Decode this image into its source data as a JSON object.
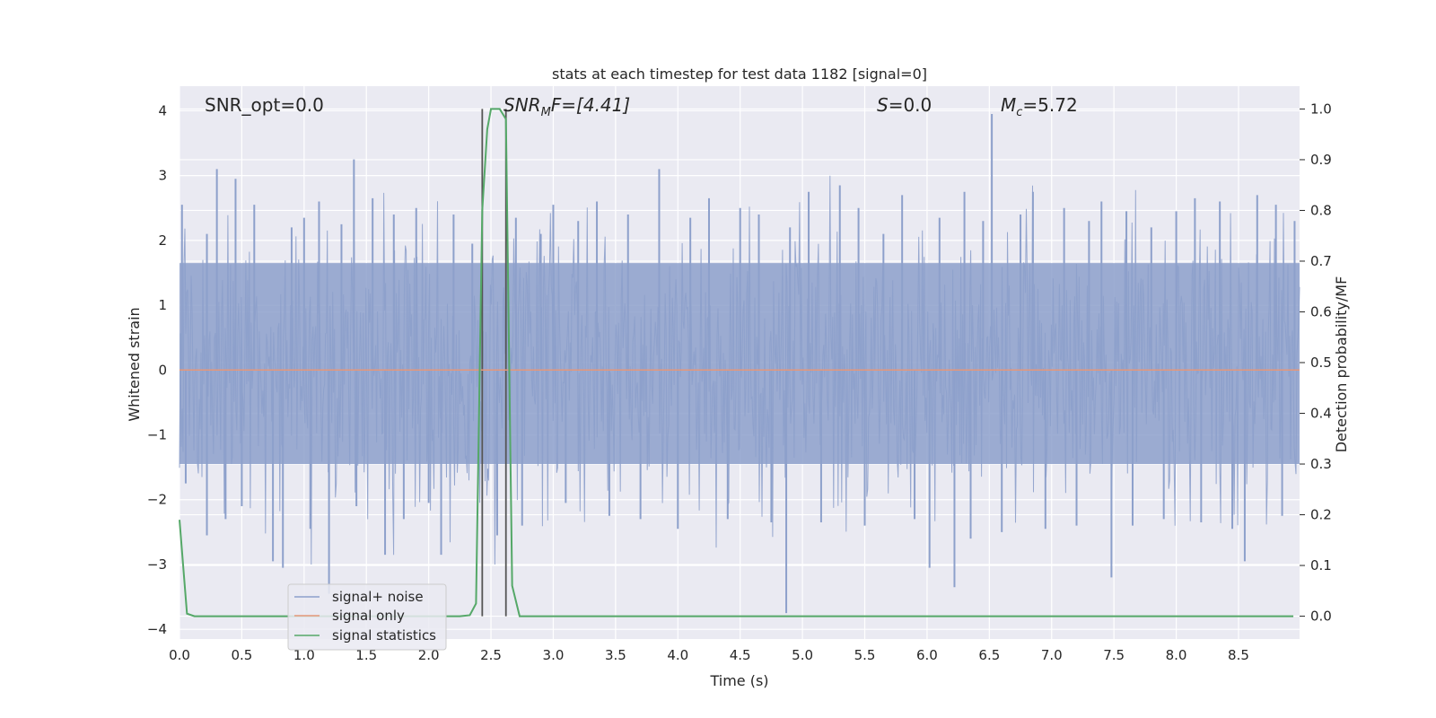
{
  "chart_data": {
    "type": "line",
    "title": "stats at each timestep for test data 1182 [signal=0]",
    "xlabel": "Time (s)",
    "ylabel": "Whitened strain",
    "y2label": "Detection probability/MF",
    "xlim": [
      0,
      8.99
    ],
    "ylim": [
      -4.15,
      4.38
    ],
    "y2lim": [
      -0.045,
      1.045
    ],
    "xticks": [
      "0.0",
      "0.5",
      "1.0",
      "1.5",
      "2.0",
      "2.5",
      "3.0",
      "3.5",
      "4.0",
      "4.5",
      "5.0",
      "5.5",
      "6.0",
      "6.5",
      "7.0",
      "7.5",
      "8.0",
      "8.5"
    ],
    "yticks": [
      "−4",
      "−3",
      "−2",
      "−1",
      "0",
      "1",
      "2",
      "3",
      "4"
    ],
    "y2ticks": [
      "0.0",
      "0.1",
      "0.2",
      "0.3",
      "0.4",
      "0.5",
      "0.6",
      "0.7",
      "0.8",
      "0.9",
      "1.0"
    ],
    "grid": true,
    "legend_position": "lower-left",
    "annotations": {
      "snr_opt": "SNR_opt=0.0",
      "snr_mf_base": "SNR",
      "snr_mf_sub": "M",
      "snr_mf_rest": "F=[4.41]",
      "s_sym": "S",
      "s_rest": "=0.0",
      "mc_base": "M",
      "mc_sub": "c",
      "mc_rest": "=5.72"
    },
    "vertical_lines_x": [
      2.43,
      2.62
    ],
    "series": [
      {
        "name": "signal+ noise",
        "color": "#8da0cb",
        "axis": "left",
        "note_band": [
          -1.45,
          1.65
        ],
        "spikes": [
          {
            "x": 0.02,
            "y": 2.55
          },
          {
            "x": 0.05,
            "y": -1.75
          },
          {
            "x": 0.22,
            "y": 2.1
          },
          {
            "x": 0.22,
            "y": -2.55
          },
          {
            "x": 0.3,
            "y": 3.1
          },
          {
            "x": 0.37,
            "y": -2.3
          },
          {
            "x": 0.45,
            "y": 2.95
          },
          {
            "x": 0.5,
            "y": -2.1
          },
          {
            "x": 0.6,
            "y": 2.55
          },
          {
            "x": 0.75,
            "y": -2.95
          },
          {
            "x": 0.83,
            "y": -3.05
          },
          {
            "x": 0.9,
            "y": 2.2
          },
          {
            "x": 1.0,
            "y": 2.35
          },
          {
            "x": 1.05,
            "y": -2.45
          },
          {
            "x": 1.12,
            "y": 2.6
          },
          {
            "x": 1.2,
            "y": -3.45
          },
          {
            "x": 1.3,
            "y": 2.25
          },
          {
            "x": 1.4,
            "y": 3.25
          },
          {
            "x": 1.42,
            "y": -2.1
          },
          {
            "x": 1.55,
            "y": 2.65
          },
          {
            "x": 1.65,
            "y": -2.85
          },
          {
            "x": 1.72,
            "y": 2.4
          },
          {
            "x": 1.8,
            "y": -2.3
          },
          {
            "x": 1.9,
            "y": 2.5
          },
          {
            "x": 2.0,
            "y": -2.05
          },
          {
            "x": 2.1,
            "y": -2.85
          },
          {
            "x": 2.2,
            "y": 2.4
          },
          {
            "x": 2.35,
            "y": 1.95
          },
          {
            "x": 2.55,
            "y": -2.55
          },
          {
            "x": 2.7,
            "y": 2.35
          },
          {
            "x": 2.75,
            "y": -2.4
          },
          {
            "x": 2.9,
            "y": 2.1
          },
          {
            "x": 3.0,
            "y": 2.55
          },
          {
            "x": 3.1,
            "y": -2.05
          },
          {
            "x": 3.2,
            "y": 2.3
          },
          {
            "x": 3.35,
            "y": 2.6
          },
          {
            "x": 3.45,
            "y": -2.25
          },
          {
            "x": 3.6,
            "y": 2.4
          },
          {
            "x": 3.7,
            "y": -2.3
          },
          {
            "x": 3.85,
            "y": 3.1
          },
          {
            "x": 4.0,
            "y": -2.45
          },
          {
            "x": 4.1,
            "y": 2.35
          },
          {
            "x": 4.25,
            "y": 2.65
          },
          {
            "x": 4.4,
            "y": -2.3
          },
          {
            "x": 4.5,
            "y": 2.5
          },
          {
            "x": 4.65,
            "y": 2.4
          },
          {
            "x": 4.75,
            "y": -2.35
          },
          {
            "x": 4.87,
            "y": -3.75
          },
          {
            "x": 4.9,
            "y": 2.2
          },
          {
            "x": 5.05,
            "y": 2.75
          },
          {
            "x": 5.15,
            "y": -2.35
          },
          {
            "x": 5.3,
            "y": 2.85
          },
          {
            "x": 5.45,
            "y": 2.5
          },
          {
            "x": 5.5,
            "y": -2.4
          },
          {
            "x": 5.65,
            "y": 2.1
          },
          {
            "x": 5.8,
            "y": 2.7
          },
          {
            "x": 5.9,
            "y": -2.3
          },
          {
            "x": 6.02,
            "y": -3.05
          },
          {
            "x": 6.1,
            "y": 2.35
          },
          {
            "x": 6.22,
            "y": -3.35
          },
          {
            "x": 6.3,
            "y": 2.75
          },
          {
            "x": 6.35,
            "y": -2.6
          },
          {
            "x": 6.45,
            "y": 2.3
          },
          {
            "x": 6.52,
            "y": 3.95
          },
          {
            "x": 6.6,
            "y": -2.5
          },
          {
            "x": 6.75,
            "y": 2.4
          },
          {
            "x": 6.85,
            "y": 2.75
          },
          {
            "x": 6.95,
            "y": -2.45
          },
          {
            "x": 7.1,
            "y": 2.5
          },
          {
            "x": 7.2,
            "y": -2.4
          },
          {
            "x": 7.3,
            "y": 2.3
          },
          {
            "x": 7.4,
            "y": 2.6
          },
          {
            "x": 7.48,
            "y": -3.2
          },
          {
            "x": 7.6,
            "y": 2.45
          },
          {
            "x": 7.65,
            "y": -2.4
          },
          {
            "x": 7.8,
            "y": 2.2
          },
          {
            "x": 7.9,
            "y": -2.3
          },
          {
            "x": 8.0,
            "y": 2.45
          },
          {
            "x": 8.15,
            "y": 2.65
          },
          {
            "x": 8.2,
            "y": -2.35
          },
          {
            "x": 8.35,
            "y": 2.6
          },
          {
            "x": 8.45,
            "y": -2.45
          },
          {
            "x": 8.55,
            "y": -2.95
          },
          {
            "x": 8.65,
            "y": 2.7
          },
          {
            "x": 8.8,
            "y": 2.55
          },
          {
            "x": 8.85,
            "y": -2.25
          },
          {
            "x": 8.95,
            "y": 2.3
          }
        ]
      },
      {
        "name": "signal only",
        "color": "#e5977a",
        "axis": "left",
        "x": [
          0,
          8.99
        ],
        "y": [
          0,
          0
        ]
      },
      {
        "name": "signal statistics",
        "color": "#55a868",
        "axis": "right",
        "x": [
          0,
          0.06,
          0.12,
          0.5,
          1.0,
          1.5,
          2.0,
          2.25,
          2.33,
          2.38,
          2.43,
          2.47,
          2.5,
          2.57,
          2.62,
          2.67,
          2.73,
          3.0,
          4.0,
          5.0,
          6.0,
          7.0,
          8.0,
          8.94
        ],
        "y": [
          0.19,
          0.005,
          0.0,
          0.0,
          0.0,
          0.0,
          0.0,
          0.0,
          0.002,
          0.025,
          0.8,
          0.96,
          1.0,
          1.0,
          0.98,
          0.06,
          0.0,
          0.0,
          0.0,
          0.0,
          0.0,
          0.0,
          0.0,
          0.0
        ]
      }
    ]
  }
}
